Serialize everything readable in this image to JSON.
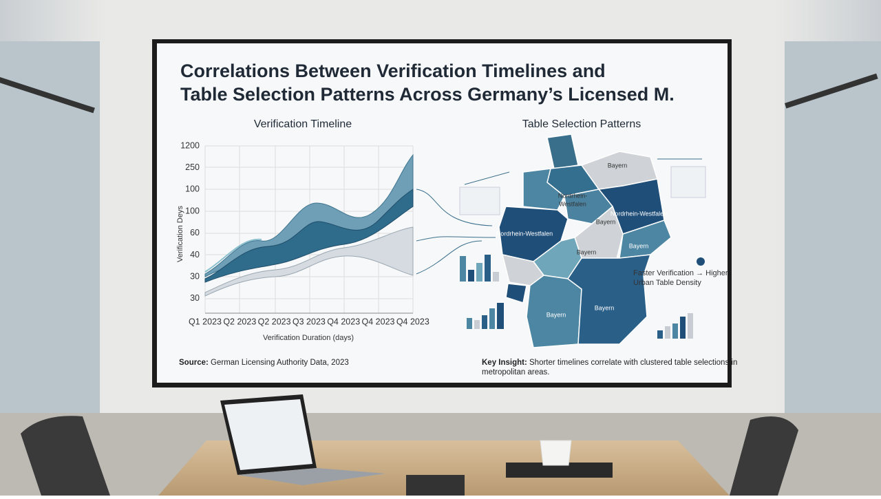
{
  "screen": {
    "title_lines": [
      "Correlations Between Verification Timelines and",
      "Table Selection Patterns Across Germany’s Licensed M."
    ],
    "left_chart": {
      "subtitle": "Verification Timeline",
      "ytick_labels": [
        "1200",
        "250",
        "100",
        "100",
        "60",
        "40",
        "30",
        "30"
      ],
      "xtick_labels": [
        "Q1 2023",
        "Q2 2023",
        "Q2 2023",
        "Q3 2023",
        "Q4 2023",
        "Q4 2023",
        "Q4 2023"
      ],
      "x_title": "Verification Duration (days)",
      "y_title": "Verification Deys"
    },
    "map": {
      "subtitle": "Table Selection Patterns",
      "region_labels": [
        "Bayern",
        "Nordrhein-",
        "Westfalen",
        "Bayern",
        "Nordrhein-Westfalen",
        "Bayern",
        "Nordrhein-Westfalen",
        "Bayern",
        "Bayern",
        "Bayern"
      ],
      "annotation_lines": [
        "Faster Verification → Higher",
        "Urban Table Density"
      ]
    },
    "source": {
      "label": "Source:",
      "text": "German Licensing Authority Data, 2023"
    },
    "key_insight": {
      "label": "Key Insight:",
      "lines": [
        "Shorter timelines correlate with clustered table selections in",
        "metropolitan areas."
      ]
    }
  }
}
